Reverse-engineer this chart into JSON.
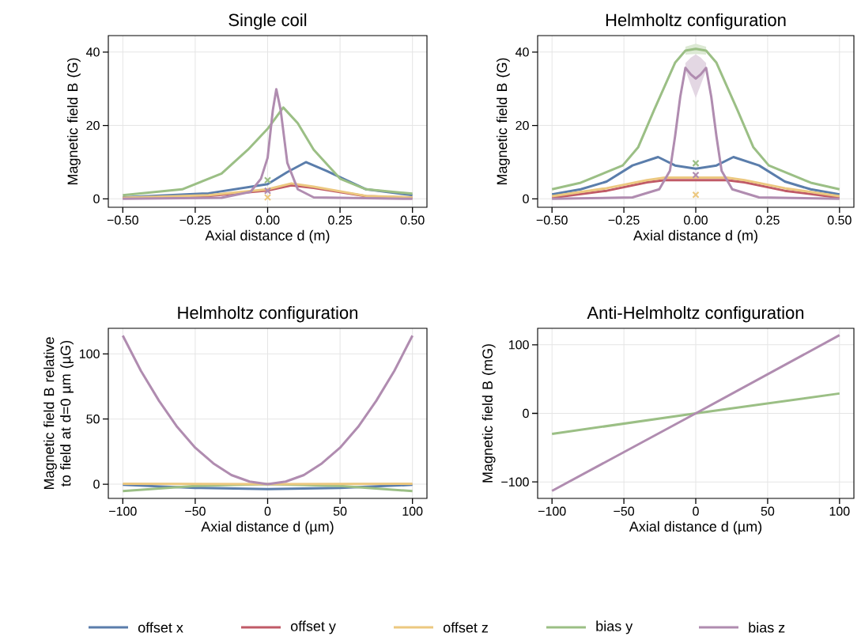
{
  "chart_data": [
    {
      "type": "line",
      "title": "Single coil",
      "xlabel": "Axial distance d (m)",
      "ylabel": "Magnetic field B (G)",
      "grid": true,
      "legend": "bottom",
      "xlim": [
        -0.55,
        0.55
      ],
      "ylim": [
        -2.3,
        44.5
      ],
      "xticks": [
        {
          "value": -0.5,
          "label": "−0.50"
        },
        {
          "value": -0.25,
          "label": "−0.25"
        },
        {
          "value": 0,
          "label": "0.00"
        },
        {
          "value": 0.25,
          "label": "0.25"
        },
        {
          "value": 0.5,
          "label": "0.50"
        }
      ],
      "yticks": [
        0,
        20,
        40
      ],
      "series": [
        {
          "name": "offset x",
          "color": "#5a7dab",
          "x": [
            -0.5,
            -0.204,
            0,
            0.068,
            0.132,
            0.204,
            0.34,
            0.5
          ],
          "values": [
            0.4,
            1.5,
            4.0,
            7.3,
            10,
            7.6,
            2.6,
            1.0
          ]
        },
        {
          "name": "offset y",
          "color": "#c05a67",
          "x": [
            -0.5,
            -0.204,
            0,
            0.082,
            0.159,
            0.34,
            0.5
          ],
          "values": [
            0.2,
            0.8,
            2.3,
            3.7,
            3.0,
            0.7,
            0.3
          ]
        },
        {
          "name": "offset z",
          "color": "#ecc880",
          "x": [
            -0.5,
            -0.204,
            0,
            0.082,
            0.159,
            0.34,
            0.5
          ],
          "values": [
            0.3,
            1.0,
            2.6,
            4.2,
            3.3,
            0.8,
            0.4
          ]
        },
        {
          "name": "bias y",
          "color": "#9bbf85",
          "x": [
            -0.5,
            -0.295,
            -0.159,
            -0.068,
            0,
            0.054,
            0.104,
            0.159,
            0.25,
            0.34,
            0.5
          ],
          "values": [
            1.0,
            2.6,
            6.9,
            13.4,
            19.1,
            24.9,
            20.6,
            13.4,
            5.5,
            2.6,
            1.4
          ]
        },
        {
          "name": "bias z",
          "color": "#b08cb0",
          "x": [
            -0.5,
            -0.159,
            -0.059,
            -0.023,
            0,
            0.018,
            0.03,
            0.045,
            0.068,
            0.104,
            0.159,
            0.5
          ],
          "values": [
            0,
            0.3,
            1.9,
            5.5,
            11.2,
            24.2,
            29.9,
            24.2,
            9.8,
            2.6,
            0.4,
            0
          ]
        },
        {
          "type": "scatter",
          "marker": "cross",
          "color": "#9bbf85",
          "x": [
            0
          ],
          "values": [
            5.1
          ]
        },
        {
          "type": "scatter",
          "marker": "cross",
          "color": "#b08cb0",
          "x": [
            0
          ],
          "values": [
            2.2
          ]
        },
        {
          "type": "scatter",
          "marker": "cross",
          "color": "#ecc880",
          "x": [
            0
          ],
          "values": [
            0.4
          ]
        }
      ]
    },
    {
      "type": "line",
      "title": "Helmholtz configuration",
      "xlabel": "Axial distance d (m)",
      "ylabel": "Magnetic field B (G)",
      "grid": true,
      "xlim": [
        -0.55,
        0.55
      ],
      "ylim": [
        -2.3,
        44.5
      ],
      "xticks": [
        {
          "value": -0.5,
          "label": "−0.50"
        },
        {
          "value": -0.25,
          "label": "−0.25"
        },
        {
          "value": 0,
          "label": "0.00"
        },
        {
          "value": 0.25,
          "label": "0.25"
        },
        {
          "value": 0.5,
          "label": "0.50"
        }
      ],
      "yticks": [
        0,
        20,
        40
      ],
      "series": [
        {
          "color": "#5a7dab",
          "x": [
            -0.5,
            -0.4,
            -0.31,
            -0.22,
            -0.131,
            -0.072,
            0,
            0.072,
            0.131,
            0.22,
            0.31,
            0.4,
            0.5
          ],
          "values": [
            1.2,
            2.6,
            4.7,
            9.1,
            11.4,
            9.1,
            8.2,
            9.1,
            11.4,
            9.1,
            4.7,
            2.6,
            1.2
          ]
        },
        {
          "color": "#c05a67",
          "x": [
            -0.5,
            -0.31,
            -0.17,
            -0.108,
            0,
            0.108,
            0.17,
            0.31,
            0.5
          ],
          "values": [
            0.3,
            2.2,
            4.5,
            5.1,
            5.1,
            5.1,
            4.5,
            2.2,
            0.3
          ]
        },
        {
          "color": "#ecc880",
          "x": [
            -0.5,
            -0.31,
            -0.17,
            -0.108,
            0,
            0.108,
            0.17,
            0.31,
            0.5
          ],
          "values": [
            0.7,
            2.9,
            5.1,
            5.8,
            5.8,
            5.8,
            5.1,
            2.9,
            0.7
          ]
        },
        {
          "color": "#9bbf85",
          "x": [
            -0.5,
            -0.4,
            -0.254,
            -0.2,
            -0.145,
            -0.072,
            -0.036,
            0,
            0.036,
            0.072,
            0.145,
            0.2,
            0.254,
            0.4,
            0.5
          ],
          "values": [
            2.6,
            4.4,
            9.1,
            14.1,
            24.2,
            37.1,
            40.4,
            40.9,
            40.4,
            37.1,
            24.2,
            14.1,
            9.1,
            4.4,
            2.6
          ],
          "lower": [
            null,
            null,
            null,
            null,
            null,
            null,
            39.3,
            39.5,
            39.3,
            null,
            null,
            null,
            null,
            null,
            null
          ],
          "upper": [
            null,
            null,
            null,
            null,
            null,
            null,
            41.5,
            42.3,
            41.5,
            null,
            null,
            null,
            null,
            null,
            null
          ]
        },
        {
          "color": "#b08cb0",
          "x": [
            -0.5,
            -0.22,
            -0.127,
            -0.09,
            -0.072,
            -0.054,
            -0.036,
            -0.017,
            0,
            0.017,
            0.036,
            0.054,
            0.072,
            0.09,
            0.127,
            0.22,
            0.5
          ],
          "values": [
            0,
            0.4,
            2.6,
            7.6,
            17,
            27.8,
            35.7,
            33.9,
            32.8,
            33.9,
            35.7,
            27.8,
            17,
            7.6,
            2.6,
            0.4,
            0
          ],
          "lower": [
            null,
            null,
            null,
            null,
            null,
            null,
            35,
            31,
            27.5,
            31,
            35,
            null,
            null,
            null,
            null,
            null,
            null
          ],
          "upper": [
            null,
            null,
            null,
            null,
            null,
            null,
            37,
            38.5,
            39.4,
            38.5,
            37,
            null,
            null,
            null,
            null,
            null,
            null
          ]
        },
        {
          "type": "scatter",
          "marker": "cross",
          "color": "#9bbf85",
          "x": [
            0
          ],
          "values": [
            9.7
          ]
        },
        {
          "type": "scatter",
          "marker": "cross",
          "color": "#b08cb0",
          "x": [
            0
          ],
          "values": [
            6.5
          ]
        },
        {
          "type": "scatter",
          "marker": "cross",
          "color": "#ecc880",
          "x": [
            0
          ],
          "values": [
            1.1
          ]
        }
      ]
    },
    {
      "type": "line",
      "title": "Helmholtz configuration",
      "xlabel": "Axial distance d (µm)",
      "ylabel": "Magnetic field B relative to field at d=0 µm (µG)",
      "grid": true,
      "xlim": [
        -110,
        110
      ],
      "ylim": [
        -10.9,
        119.6
      ],
      "xticks": [
        {
          "value": -100,
          "label": "−100"
        },
        {
          "value": -50,
          "label": "−50"
        },
        0,
        50,
        100
      ],
      "yticks": [
        0,
        50,
        100
      ],
      "series": [
        {
          "color": "#5a7dab",
          "x": [
            -100,
            -50,
            0,
            50,
            100
          ],
          "values": [
            -0.5,
            -2.8,
            -3.8,
            -2.8,
            -0.5
          ]
        },
        {
          "color": "#9bbf85",
          "x": [
            -100,
            -50,
            0,
            50,
            100
          ],
          "values": [
            -5.3,
            -1.3,
            0,
            -1.3,
            -5.3
          ]
        },
        {
          "color": "#ecc880",
          "x": [
            -100,
            0,
            100
          ],
          "values": [
            0.3,
            0,
            0.3
          ]
        },
        {
          "color": "#b08cb0",
          "x": [
            -100,
            -87.5,
            -75,
            -62.5,
            -50,
            -37.5,
            -25,
            -12.5,
            0,
            12.5,
            25,
            37.5,
            50,
            62.5,
            75,
            87.5,
            100
          ],
          "values": [
            114,
            87,
            64,
            44,
            28,
            16,
            7,
            2,
            0,
            2,
            7,
            16,
            28,
            44,
            64,
            87,
            114
          ]
        }
      ]
    },
    {
      "type": "line",
      "title": "Anti-Helmholtz configuration",
      "xlabel": "Axial distance d (µm)",
      "ylabel": "Magnetic field B (mG)",
      "grid": true,
      "xlim": [
        -110,
        110
      ],
      "ylim": [
        -124,
        124
      ],
      "xticks": [
        {
          "value": -100,
          "label": "−100"
        },
        {
          "value": -50,
          "label": "−50"
        },
        0,
        50,
        100
      ],
      "yticks": [
        {
          "value": -100,
          "label": "−100"
        },
        0,
        100
      ],
      "series": [
        {
          "color": "#9bbf85",
          "x": [
            -100,
            0,
            100
          ],
          "values": [
            -30,
            0,
            29
          ]
        },
        {
          "color": "#b08cb0",
          "x": [
            -100,
            0,
            100
          ],
          "values": [
            -113,
            0,
            114
          ]
        }
      ]
    }
  ]
}
